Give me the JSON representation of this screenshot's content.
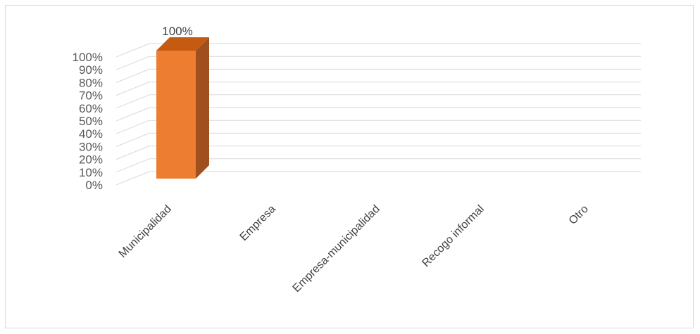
{
  "chart_data": {
    "type": "bar",
    "style": "3d-column",
    "categories": [
      "Municipalidad",
      "Empresa",
      "Empresa-municipalidad",
      "Recogo informal",
      "Otro"
    ],
    "values": [
      100,
      0,
      0,
      0,
      0
    ],
    "data_labels": [
      "100%",
      "",
      "",
      "",
      ""
    ],
    "yticks": [
      "0%",
      "10%",
      "20%",
      "30%",
      "40%",
      "50%",
      "60%",
      "70%",
      "80%",
      "90%",
      "100%"
    ],
    "ylim": [
      0,
      100
    ],
    "grid": true,
    "colors": {
      "bar_front": "#ED7D31",
      "bar_side": "#A0501E",
      "bar_top": "#C55A11",
      "grid": "#D9D9D9"
    }
  }
}
